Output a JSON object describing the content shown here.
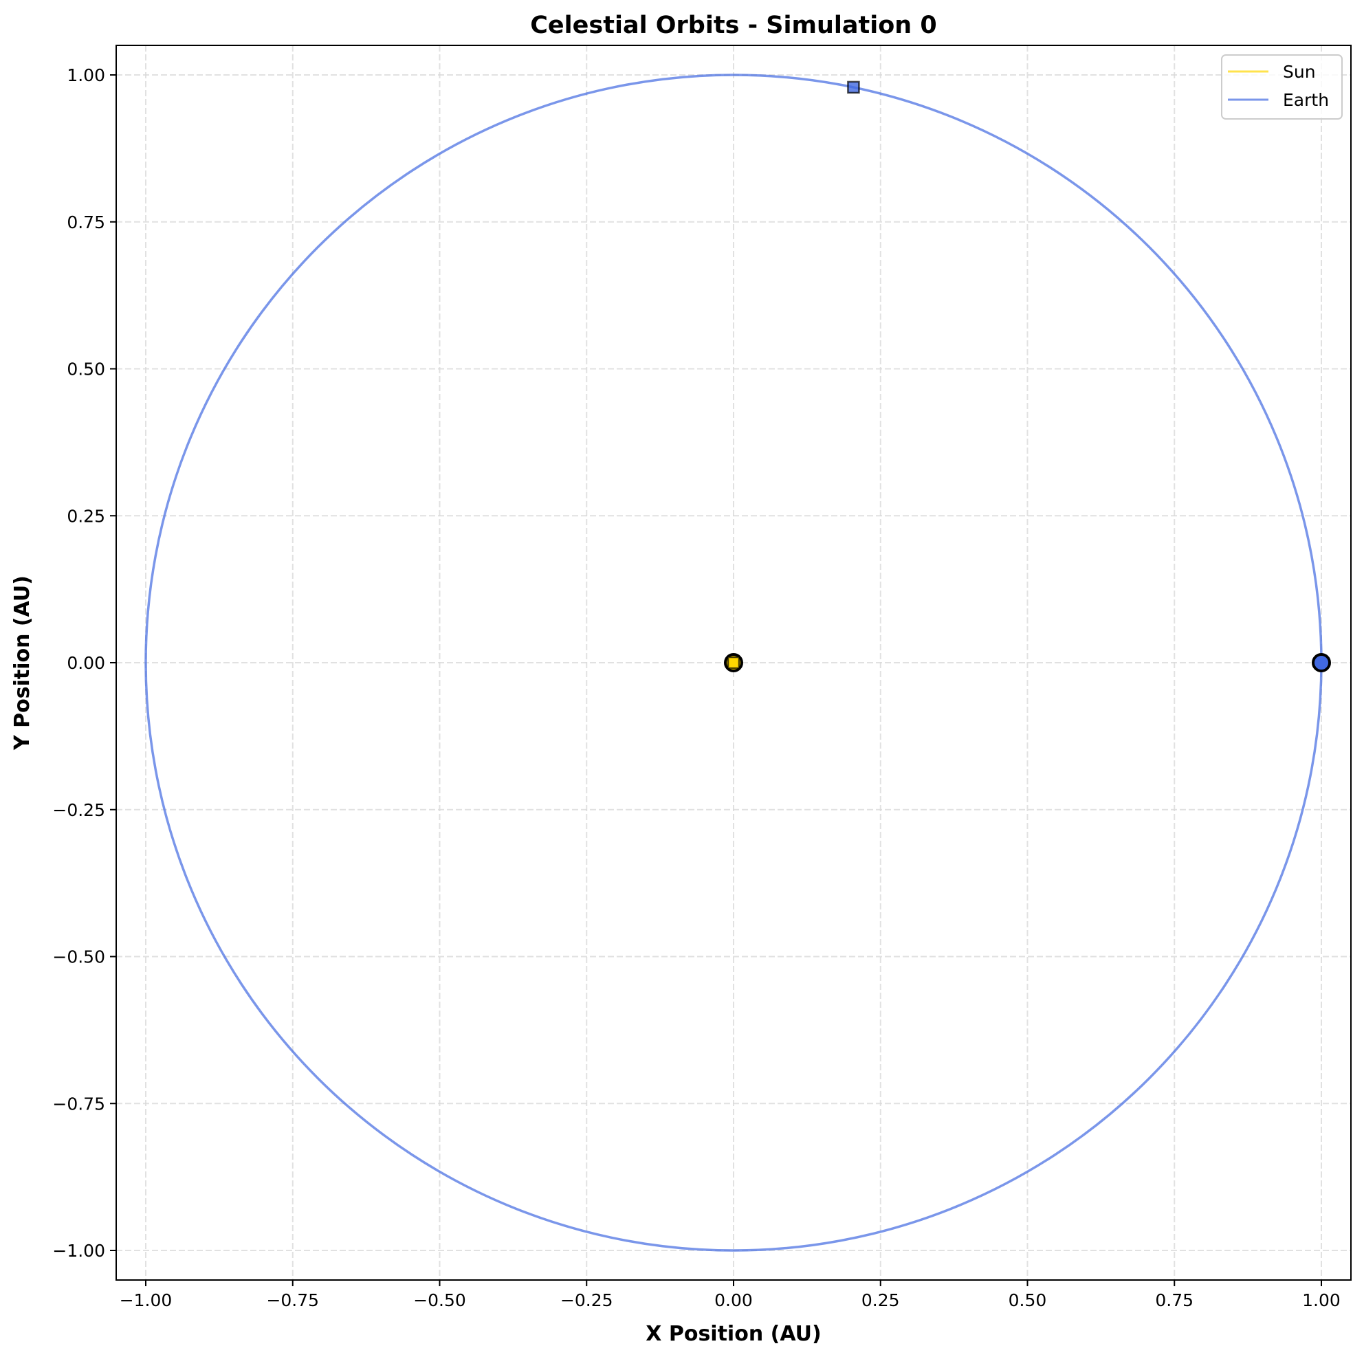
{
  "chart_data": {
    "type": "line",
    "title": "Celestial Orbits - Simulation 0",
    "xlabel": "X Position (AU)",
    "ylabel": "Y Position (AU)",
    "xlim": [
      -1.05,
      1.05
    ],
    "ylim": [
      -1.05,
      1.05
    ],
    "xticks": [
      -1.0,
      -0.75,
      -0.5,
      -0.25,
      0.0,
      0.25,
      0.5,
      0.75,
      1.0
    ],
    "yticks": [
      -1.0,
      -0.75,
      -0.5,
      -0.25,
      0.0,
      0.25,
      0.5,
      0.75,
      1.0
    ],
    "xtick_labels": [
      "−1.00",
      "−0.75",
      "−0.50",
      "−0.25",
      "0.00",
      "0.25",
      "0.50",
      "0.75",
      "1.00"
    ],
    "ytick_labels": [
      "−1.00",
      "−0.75",
      "−0.50",
      "−0.25",
      "0.00",
      "0.25",
      "0.50",
      "0.75",
      "1.00"
    ],
    "grid": true,
    "legend_position": "upper right",
    "series": [
      {
        "name": "Sun",
        "color": "#FFD700",
        "orbit": {
          "center": [
            0,
            0
          ],
          "radius": 0.0
        },
        "start": {
          "x": 0.0,
          "y": 0.0,
          "marker": "circle"
        },
        "end": {
          "x": 0.0,
          "y": 0.0,
          "marker": "square"
        }
      },
      {
        "name": "Earth",
        "color": "#4169E1",
        "line_color": "#7896E8",
        "orbit": {
          "center": [
            0,
            0
          ],
          "radius": 1.0
        },
        "start": {
          "x": 1.0,
          "y": 0.0,
          "marker": "circle"
        },
        "end": {
          "x": 0.204,
          "y": 0.979,
          "marker": "square"
        }
      }
    ]
  },
  "legend": {
    "items": [
      {
        "label": "Sun",
        "color": "#FFD700"
      },
      {
        "label": "Earth",
        "color": "#4169E1"
      }
    ]
  }
}
